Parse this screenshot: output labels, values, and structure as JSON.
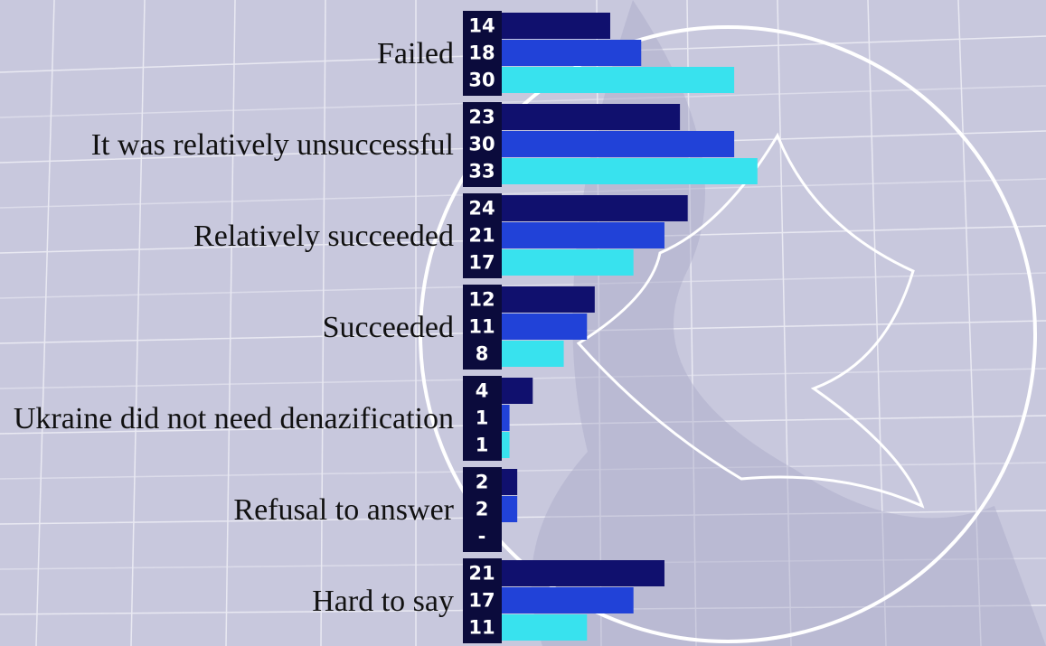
{
  "chart_data": {
    "type": "bar",
    "orientation": "horizontal",
    "categories": [
      "Failed",
      "It was relatively unsuccessful",
      "Relatively succeeded",
      "Succeeded",
      "Ukraine did not need denazification",
      "Refusal to answer",
      "Hard to say"
    ],
    "series": [
      {
        "color": "#10106e",
        "values": [
          14,
          23,
          24,
          12,
          4,
          2,
          21
        ]
      },
      {
        "color": "#2142d8",
        "values": [
          18,
          30,
          21,
          11,
          1,
          2,
          17
        ]
      },
      {
        "color": "#38e2ee",
        "values": [
          30,
          33,
          17,
          8,
          1,
          null,
          11
        ],
        "value_labels": [
          "30",
          "33",
          "17",
          "8",
          "1",
          "-",
          "11"
        ]
      }
    ]
  }
}
